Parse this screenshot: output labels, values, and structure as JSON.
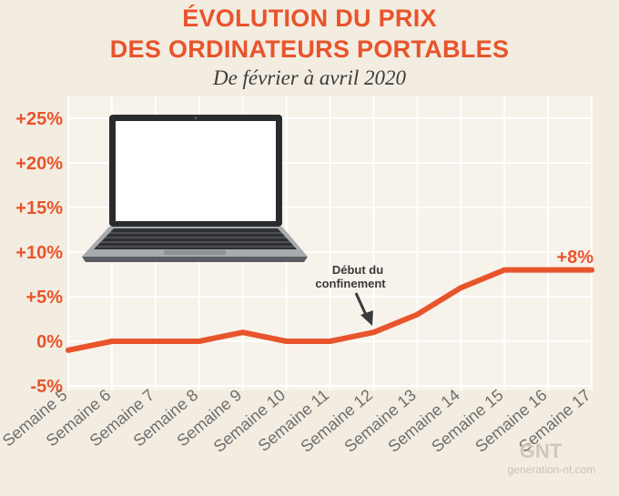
{
  "chart_data": {
    "type": "line",
    "title_line1": "ÉVOLUTION DU PRIX",
    "title_line2": "DES ORDINATEURS PORTABLES",
    "subtitle": "De février à avril 2020",
    "categories": [
      "Semaine 5",
      "Semaine 6",
      "Semaine 7",
      "Semaine 8",
      "Semaine 9",
      "Semaine 10",
      "Semaine 11",
      "Semaine 12",
      "Semaine 13",
      "Semaine 14",
      "Semaine 15",
      "Semaine 16",
      "Semaine 17"
    ],
    "values": [
      -1,
      0,
      0,
      0,
      1,
      0,
      0,
      1,
      3,
      6,
      8,
      8,
      8
    ],
    "ylim": [
      -5,
      25
    ],
    "yticks": [
      -5,
      0,
      5,
      10,
      15,
      20,
      25
    ],
    "ytick_labels": [
      "-5%",
      "0%",
      "+5%",
      "+10%",
      "+15%",
      "+20%",
      "+25%"
    ],
    "grid": true,
    "annotation": {
      "line1": "Début du",
      "line2": "confinement",
      "category": "Semaine 12"
    },
    "end_label": "+8%",
    "colors": {
      "line": "#e8542b",
      "grid": "#ffffff",
      "plot_bg": "#f7f2ea"
    }
  },
  "watermark": {
    "logo": "GNT",
    "text": "generation-nt.com"
  },
  "illustration": {
    "icon": "laptop-icon"
  }
}
